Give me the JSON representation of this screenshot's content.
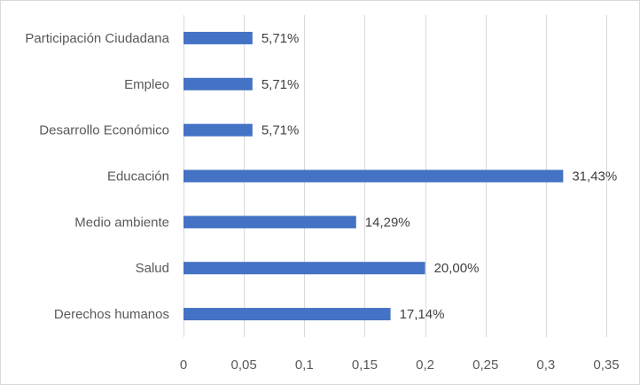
{
  "chart_data": {
    "type": "bar",
    "orientation": "horizontal",
    "categories": [
      "Participación Ciudadana",
      "Empleo",
      "Desarrollo Económico",
      "Educación",
      "Medio ambiente",
      "Salud",
      "Derechos humanos"
    ],
    "values": [
      0.0571,
      0.0571,
      0.0571,
      0.3143,
      0.1429,
      0.2,
      0.1714
    ],
    "data_labels": [
      "5,71%",
      "5,71%",
      "5,71%",
      "31,43%",
      "14,29%",
      "20,00%",
      "17,14%"
    ],
    "xlim": [
      0,
      0.35
    ],
    "x_ticks": [
      0,
      0.05,
      0.1,
      0.15,
      0.2,
      0.25,
      0.3,
      0.35
    ],
    "x_tick_labels": [
      "0",
      "0,05",
      "0,1",
      "0,15",
      "0,2",
      "0,25",
      "0,3",
      "0,35"
    ],
    "grid": "vertical",
    "legend": "none",
    "bar_color": "#4472c4",
    "grid_color": "#d9d9d9",
    "title": "",
    "xlabel": "",
    "ylabel": ""
  }
}
